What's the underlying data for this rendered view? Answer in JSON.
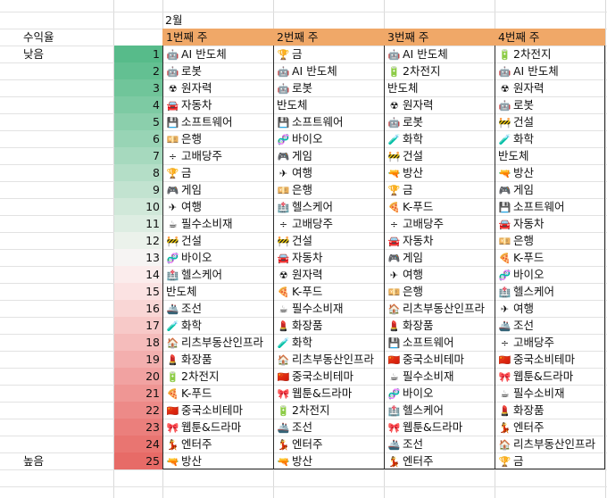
{
  "sheet": {
    "month": "2월",
    "left_header": "수익율",
    "low_label": "낮음",
    "high_label": "높음",
    "week_headers": [
      "1번째 주",
      "2번째 주",
      "3번째 주",
      "4번째 주"
    ],
    "ranks": [
      "1",
      "2",
      "3",
      "4",
      "5",
      "6",
      "7",
      "8",
      "9",
      "10",
      "11",
      "12",
      "13",
      "14",
      "15",
      "16",
      "17",
      "18",
      "19",
      "20",
      "21",
      "22",
      "23",
      "24",
      "25"
    ],
    "rank_colors": [
      "#57bb8a",
      "#63c092",
      "#70c59a",
      "#7dcaa3",
      "#8bcfac",
      "#98d4b5",
      "#a6d9be",
      "#b4dec7",
      "#c2e3d0",
      "#d0e8d9",
      "#ddede2",
      "#ebf2eb",
      "#f6f4f3",
      "#fbecec",
      "#fbe2e2",
      "#f9d6d5",
      "#f7c9c8",
      "#f5bcbb",
      "#f3afae",
      "#f1a2a1",
      "#ef9694",
      "#ed8a88",
      "#eb7f7c",
      "#e97571",
      "#e76b67"
    ],
    "columns": [
      [
        {
          "icon": "robot-icon",
          "glyph": "🤖",
          "label": "AI 반도체"
        },
        {
          "icon": "robot-icon",
          "glyph": "🤖",
          "label": "로봇"
        },
        {
          "icon": "radiation-icon",
          "glyph": "☢",
          "label": "원자력"
        },
        {
          "icon": "car-icon",
          "glyph": "🚘",
          "label": "자동차"
        },
        {
          "icon": "floppy-icon",
          "glyph": "💾",
          "label": "소프트웨어"
        },
        {
          "icon": "bank-note-icon",
          "glyph": "💴",
          "label": "은행"
        },
        {
          "icon": "divide-icon",
          "glyph": "÷",
          "label": "고배당주"
        },
        {
          "icon": "trophy-icon",
          "glyph": "🏆",
          "label": "금"
        },
        {
          "icon": "gamepad-icon",
          "glyph": "🎮",
          "label": "게임"
        },
        {
          "icon": "airplane-icon",
          "glyph": "✈",
          "label": "여행"
        },
        {
          "icon": "coffee-icon",
          "glyph": "☕",
          "label": "필수소비재"
        },
        {
          "icon": "barrier-icon",
          "glyph": "🚧",
          "label": "건설"
        },
        {
          "icon": "dna-icon",
          "glyph": "🧬",
          "label": "바이오"
        },
        {
          "icon": "hospital-icon",
          "glyph": "🏥",
          "label": "헬스케어"
        },
        {
          "icon": "",
          "glyph": "",
          "label": "반도체"
        },
        {
          "icon": "ship-icon",
          "glyph": "🚢",
          "label": "조선"
        },
        {
          "icon": "flask-icon",
          "glyph": "🧪",
          "label": "화학"
        },
        {
          "icon": "house-icon",
          "glyph": "🏠",
          "label": "리츠부동산인프라"
        },
        {
          "icon": "lipstick-icon",
          "glyph": "💄",
          "label": "화장품"
        },
        {
          "icon": "battery-icon",
          "glyph": "🔋",
          "label": "2차전지"
        },
        {
          "icon": "pizza-icon",
          "glyph": "🍕",
          "label": "K-푸드"
        },
        {
          "icon": "china-flag-icon",
          "glyph": "🇨🇳",
          "label": "중국소비테마"
        },
        {
          "icon": "bow-icon",
          "glyph": "🎀",
          "label": "웹툰&드라마"
        },
        {
          "icon": "performer-icon",
          "glyph": "💃",
          "label": "엔터주"
        },
        {
          "icon": "gun-icon",
          "glyph": "🔫",
          "label": "방산"
        }
      ],
      [
        {
          "icon": "trophy-icon",
          "glyph": "🏆",
          "label": "금"
        },
        {
          "icon": "robot-icon",
          "glyph": "🤖",
          "label": "AI 반도체"
        },
        {
          "icon": "robot-icon",
          "glyph": "🤖",
          "label": "로봇"
        },
        {
          "icon": "",
          "glyph": "",
          "label": "반도체"
        },
        {
          "icon": "floppy-icon",
          "glyph": "💾",
          "label": "소프트웨어"
        },
        {
          "icon": "dna-icon",
          "glyph": "🧬",
          "label": "바이오"
        },
        {
          "icon": "gamepad-icon",
          "glyph": "🎮",
          "label": "게임"
        },
        {
          "icon": "airplane-icon",
          "glyph": "✈",
          "label": "여행"
        },
        {
          "icon": "bank-note-icon",
          "glyph": "💴",
          "label": "은행"
        },
        {
          "icon": "hospital-icon",
          "glyph": "🏥",
          "label": "헬스케어"
        },
        {
          "icon": "divide-icon",
          "glyph": "÷",
          "label": "고배당주"
        },
        {
          "icon": "barrier-icon",
          "glyph": "🚧",
          "label": "건설"
        },
        {
          "icon": "car-icon",
          "glyph": "🚘",
          "label": "자동차"
        },
        {
          "icon": "radiation-icon",
          "glyph": "☢",
          "label": "원자력"
        },
        {
          "icon": "pizza-icon",
          "glyph": "🍕",
          "label": "K-푸드"
        },
        {
          "icon": "coffee-icon",
          "glyph": "☕",
          "label": "필수소비재"
        },
        {
          "icon": "lipstick-icon",
          "glyph": "💄",
          "label": "화장품"
        },
        {
          "icon": "flask-icon",
          "glyph": "🧪",
          "label": "화학"
        },
        {
          "icon": "house-icon",
          "glyph": "🏠",
          "label": "리츠부동산인프라"
        },
        {
          "icon": "china-flag-icon",
          "glyph": "🇨🇳",
          "label": "중국소비테마"
        },
        {
          "icon": "bow-icon",
          "glyph": "🎀",
          "label": "웹툰&드라마"
        },
        {
          "icon": "battery-icon",
          "glyph": "🔋",
          "label": "2차전지"
        },
        {
          "icon": "ship-icon",
          "glyph": "🚢",
          "label": "조선"
        },
        {
          "icon": "performer-icon",
          "glyph": "💃",
          "label": "엔터주"
        },
        {
          "icon": "gun-icon",
          "glyph": "🔫",
          "label": "방산"
        }
      ],
      [
        {
          "icon": "robot-icon",
          "glyph": "🤖",
          "label": "AI 반도체"
        },
        {
          "icon": "battery-icon",
          "glyph": "🔋",
          "label": "2차전지"
        },
        {
          "icon": "",
          "glyph": "",
          "label": "반도체"
        },
        {
          "icon": "radiation-icon",
          "glyph": "☢",
          "label": "원자력"
        },
        {
          "icon": "robot-icon",
          "glyph": "🤖",
          "label": "로봇"
        },
        {
          "icon": "flask-icon",
          "glyph": "🧪",
          "label": "화학"
        },
        {
          "icon": "barrier-icon",
          "glyph": "🚧",
          "label": "건설"
        },
        {
          "icon": "gun-icon",
          "glyph": "🔫",
          "label": "방산"
        },
        {
          "icon": "trophy-icon",
          "glyph": "🏆",
          "label": "금"
        },
        {
          "icon": "pizza-icon",
          "glyph": "🍕",
          "label": "K-푸드"
        },
        {
          "icon": "divide-icon",
          "glyph": "÷",
          "label": "고배당주"
        },
        {
          "icon": "car-icon",
          "glyph": "🚘",
          "label": "자동차"
        },
        {
          "icon": "gamepad-icon",
          "glyph": "🎮",
          "label": "게임"
        },
        {
          "icon": "airplane-icon",
          "glyph": "✈",
          "label": "여행"
        },
        {
          "icon": "bank-note-icon",
          "glyph": "💴",
          "label": "은행"
        },
        {
          "icon": "house-icon",
          "glyph": "🏠",
          "label": "리츠부동산인프라"
        },
        {
          "icon": "lipstick-icon",
          "glyph": "💄",
          "label": "화장품"
        },
        {
          "icon": "floppy-icon",
          "glyph": "💾",
          "label": "소프트웨어"
        },
        {
          "icon": "china-flag-icon",
          "glyph": "🇨🇳",
          "label": "중국소비테마"
        },
        {
          "icon": "coffee-icon",
          "glyph": "☕",
          "label": "필수소비재"
        },
        {
          "icon": "dna-icon",
          "glyph": "🧬",
          "label": "바이오"
        },
        {
          "icon": "hospital-icon",
          "glyph": "🏥",
          "label": "헬스케어"
        },
        {
          "icon": "bow-icon",
          "glyph": "🎀",
          "label": "웹툰&드라마"
        },
        {
          "icon": "ship-icon",
          "glyph": "🚢",
          "label": "조선"
        },
        {
          "icon": "performer-icon",
          "glyph": "💃",
          "label": "엔터주"
        }
      ],
      [
        {
          "icon": "battery-icon",
          "glyph": "🔋",
          "label": "2차전지"
        },
        {
          "icon": "robot-icon",
          "glyph": "🤖",
          "label": "AI 반도체"
        },
        {
          "icon": "radiation-icon",
          "glyph": "☢",
          "label": "원자력"
        },
        {
          "icon": "robot-icon",
          "glyph": "🤖",
          "label": "로봇"
        },
        {
          "icon": "barrier-icon",
          "glyph": "🚧",
          "label": "건설"
        },
        {
          "icon": "flask-icon",
          "glyph": "🧪",
          "label": "화학"
        },
        {
          "icon": "",
          "glyph": "",
          "label": "반도체"
        },
        {
          "icon": "gun-icon",
          "glyph": "🔫",
          "label": "방산"
        },
        {
          "icon": "gamepad-icon",
          "glyph": "🎮",
          "label": "게임"
        },
        {
          "icon": "floppy-icon",
          "glyph": "💾",
          "label": "소프트웨어"
        },
        {
          "icon": "car-icon",
          "glyph": "🚘",
          "label": "자동차"
        },
        {
          "icon": "bank-note-icon",
          "glyph": "💴",
          "label": "은행"
        },
        {
          "icon": "pizza-icon",
          "glyph": "🍕",
          "label": "K-푸드"
        },
        {
          "icon": "dna-icon",
          "glyph": "🧬",
          "label": "바이오"
        },
        {
          "icon": "hospital-icon",
          "glyph": "🏥",
          "label": "헬스케어"
        },
        {
          "icon": "airplane-icon",
          "glyph": "✈",
          "label": "여행"
        },
        {
          "icon": "ship-icon",
          "glyph": "🚢",
          "label": "조선"
        },
        {
          "icon": "divide-icon",
          "glyph": "÷",
          "label": "고배당주"
        },
        {
          "icon": "china-flag-icon",
          "glyph": "🇨🇳",
          "label": "중국소비테마"
        },
        {
          "icon": "bow-icon",
          "glyph": "🎀",
          "label": "웹툰&드라마"
        },
        {
          "icon": "coffee-icon",
          "glyph": "☕",
          "label": "필수소비재"
        },
        {
          "icon": "lipstick-icon",
          "glyph": "💄",
          "label": "화장품"
        },
        {
          "icon": "performer-icon",
          "glyph": "💃",
          "label": "엔터주"
        },
        {
          "icon": "house-icon",
          "glyph": "🏠",
          "label": "리츠부동산인프라"
        },
        {
          "icon": "trophy-icon",
          "glyph": "🏆",
          "label": "금"
        }
      ]
    ]
  }
}
